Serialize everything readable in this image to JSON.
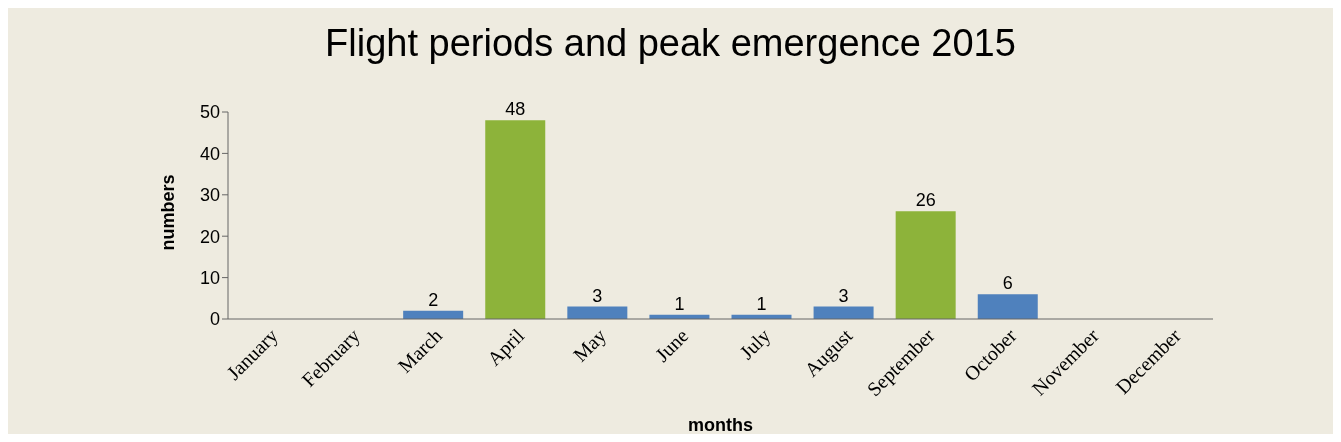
{
  "chart_data": {
    "type": "bar",
    "title": "Flight periods and peak emergence 2015",
    "xlabel": "months",
    "ylabel": "numbers",
    "categories": [
      "January",
      "February",
      "March",
      "April",
      "May",
      "June",
      "July",
      "August",
      "September",
      "October",
      "November",
      "December"
    ],
    "values": [
      null,
      null,
      2,
      48,
      3,
      1,
      1,
      3,
      26,
      6,
      null,
      null
    ],
    "colors": [
      "#4f81bd",
      "#4f81bd",
      "#4f81bd",
      "#8db33a",
      "#4f81bd",
      "#4f81bd",
      "#4f81bd",
      "#4f81bd",
      "#8db33a",
      "#4f81bd",
      "#4f81bd",
      "#4f81bd"
    ],
    "ylim": [
      0,
      50
    ],
    "yticks": [
      0,
      10,
      20,
      30,
      40,
      50
    ],
    "data_labels": true,
    "grid": false,
    "legend": false
  }
}
